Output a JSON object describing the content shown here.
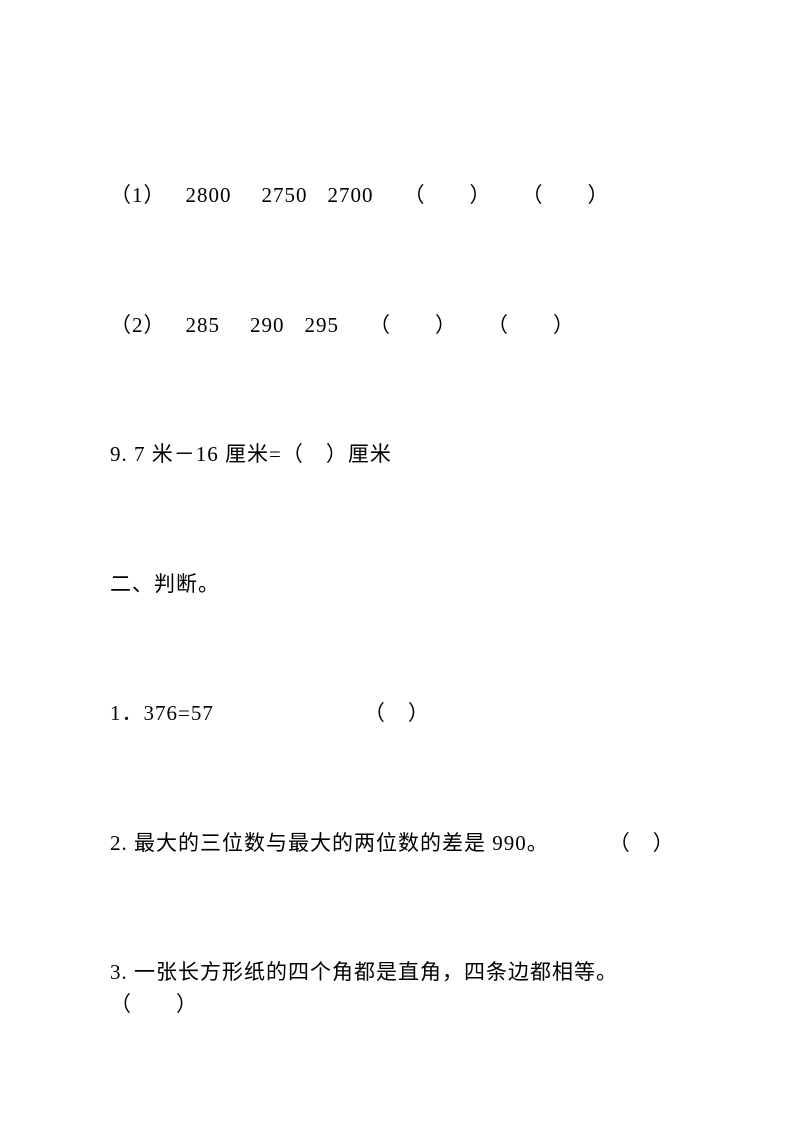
{
  "q1": {
    "label": "（1）",
    "n1": "2800",
    "n2": "2750",
    "n3": "2700",
    "blank1": "（　　）",
    "blank2": "（　　）"
  },
  "q2": {
    "label": "（2）",
    "n1": "285",
    "n2": "290",
    "n3": "295",
    "blank1": "（　　）",
    "blank2": "（　　）"
  },
  "q9": {
    "text": "9. 7 米－16 厘米=（　）厘米"
  },
  "section2": {
    "title": "二、判断。"
  },
  "j1": {
    "text": "1．376=57",
    "blank": "（　）"
  },
  "j2": {
    "text": "2. 最大的三位数与最大的两位数的差是 990。",
    "blank": "（　）"
  },
  "j3": {
    "text": "3. 一张长方形纸的四个角都是直角，四条边都相等。",
    "blank": "（　　）"
  }
}
